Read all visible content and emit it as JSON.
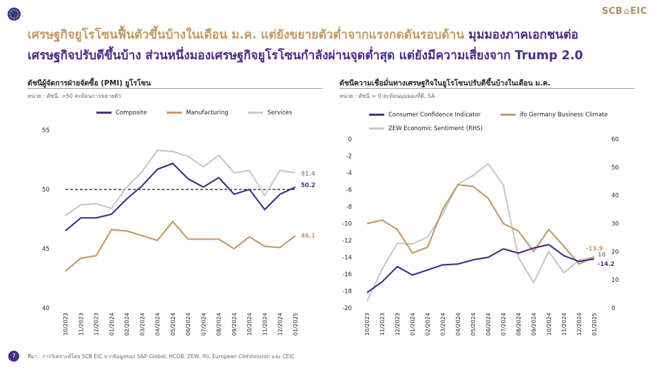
{
  "brand": {
    "left": "SCB",
    "right": "EIC"
  },
  "headline": {
    "line1_gold": "เศรษฐกิจยูโรโซนฟื้นตัวขึ้นบ้างในเดือน ม.ค. แต่ยังขยายตัวต่ำจากแรงกดดันรอบด้าน",
    "line1_purple": "มุมมองภาคเอกชนต่อ",
    "line2_purple": "เศรษฐกิจปรับดีขึ้นบ้าง ส่วนหนึ่งมองเศรษฐกิจยูโรโซนกำลังผ่านจุดต่ำสุด แต่ยังมีความเสี่ยงจาก Trump 2.0"
  },
  "colors": {
    "purple": "#4b2c86",
    "gold": "#c49a66",
    "gray": "#c8c8c8",
    "text": "#333333"
  },
  "page_number": "7",
  "source": "ที่มา : การวิเคราะห์โดย SCB EIC จากข้อมูลของ S&P Global, HCOB, ZEW, Ifo, European Commission และ CEIC",
  "chart_data": [
    {
      "type": "line",
      "title": "ดัชนีผู้จัดการฝ่ายจัดซื้อ (PMI) ยูโรโซน",
      "subtitle": "หน่วย : ดัชนี, >50 สะท้อนการขยายตัว",
      "x": [
        "10/2023",
        "11/2023",
        "12/2023",
        "01/2024",
        "02/2024",
        "03/2024",
        "04/2024",
        "05/2024",
        "06/2024",
        "07/2024",
        "08/2024",
        "09/2024",
        "10/2024",
        "11/2024",
        "12/2024",
        "01/2025"
      ],
      "ylim": [
        40,
        55
      ],
      "yticks": [
        40,
        45,
        50,
        55
      ],
      "reference_line": 50,
      "legend_position": "top",
      "series": [
        {
          "name": "Composite",
          "color": "#4b2c86",
          "values": [
            46.5,
            47.6,
            47.6,
            47.9,
            49.2,
            50.3,
            51.7,
            52.2,
            50.9,
            50.2,
            51.0,
            49.6,
            50.0,
            48.3,
            49.6,
            50.2
          ],
          "end_label": "50.2"
        },
        {
          "name": "Manufacturing",
          "color": "#c49a66",
          "values": [
            43.1,
            44.2,
            44.4,
            46.6,
            46.5,
            46.1,
            45.7,
            47.3,
            45.8,
            45.8,
            45.8,
            45.0,
            46.0,
            45.2,
            45.1,
            46.1
          ],
          "end_label": "46.1"
        },
        {
          "name": "Services",
          "color": "#c8c8c8",
          "values": [
            47.8,
            48.7,
            48.8,
            48.4,
            50.2,
            51.5,
            53.3,
            53.2,
            52.8,
            51.9,
            52.9,
            51.4,
            51.6,
            49.5,
            51.6,
            51.4
          ],
          "end_label": "51.4"
        }
      ]
    },
    {
      "type": "line",
      "title": "ดัชนีความเชื่อมั่นทางเศรษฐกิจในยูโรโซนปรับดีขึ้นบ้างในเดือน ม.ค.",
      "subtitle": "หน่วย : ดัชนี > 0 สะท้อนมุมมองที่ดี, SA",
      "x": [
        "10/2023",
        "11/2023",
        "12/2023",
        "01/2024",
        "02/2024",
        "03/2024",
        "04/2024",
        "05/2024",
        "06/2024",
        "07/2024",
        "08/2024",
        "09/2024",
        "10/2024",
        "11/2024",
        "12/2024",
        "01/2025"
      ],
      "ylim": [
        -20,
        0
      ],
      "yticks": [
        -20,
        -18,
        -16,
        -14,
        -12,
        -10,
        -8,
        -6,
        -4,
        -2,
        0
      ],
      "y2lim": [
        0,
        60
      ],
      "y2ticks": [
        0,
        10,
        20,
        30,
        40,
        50,
        60
      ],
      "legend_position": "top",
      "series": [
        {
          "name": "Consumer Confidence Indicator",
          "color": "#4b2c86",
          "axis": "left",
          "values": [
            -18.2,
            -16.9,
            -15.1,
            -16.1,
            -15.5,
            -14.9,
            -14.8,
            -14.3,
            -14.0,
            -13.0,
            -13.5,
            -12.9,
            -12.5,
            -13.8,
            -14.5,
            -14.2
          ],
          "end_label": "-14.2"
        },
        {
          "name": "ifo Germany Business Climate",
          "color": "#c49a66",
          "axis": "left",
          "values": [
            -10.0,
            -9.6,
            -10.7,
            -13.5,
            -12.8,
            -8.3,
            -5.4,
            -5.6,
            -7.0,
            -10.0,
            -10.9,
            -13.3,
            -10.7,
            -12.7,
            -14.8,
            -13.9
          ],
          "end_label": "-13.9"
        },
        {
          "name": "ZEW Economic Sentiment (RHS)",
          "color": "#c8c8c8",
          "axis": "right",
          "values": [
            2.3,
            13.8,
            23.0,
            22.7,
            25.2,
            33.5,
            43.9,
            47.1,
            51.3,
            43.7,
            17.9,
            9.0,
            20.1,
            12.5,
            17.0,
            18.0
          ],
          "end_label": "18"
        }
      ]
    }
  ]
}
